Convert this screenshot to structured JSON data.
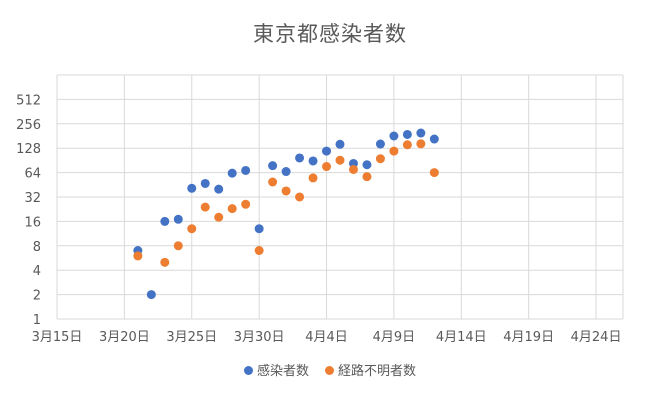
{
  "chart_data": {
    "type": "scatter",
    "title": "東京都感染者数",
    "y_scale": "log2",
    "ylim": [
      1,
      1024
    ],
    "xlim": [
      "2020-03-15",
      "2020-04-26"
    ],
    "x_ticks": [
      "3月15日",
      "3月20日",
      "3月25日",
      "3月30日",
      "4月4日",
      "4月9日",
      "4月14日",
      "4月19日",
      "4月24日"
    ],
    "y_ticks": [
      "1",
      "2",
      "4",
      "8",
      "16",
      "32",
      "64",
      "128",
      "256",
      "512"
    ],
    "grid": true,
    "legend_position": "bottom",
    "series": [
      {
        "name": "感染者数",
        "color": "#4472C4",
        "points": [
          {
            "x": "2020-03-21",
            "y": 7
          },
          {
            "x": "2020-03-22",
            "y": 2
          },
          {
            "x": "2020-03-23",
            "y": 16
          },
          {
            "x": "2020-03-24",
            "y": 17
          },
          {
            "x": "2020-03-25",
            "y": 41
          },
          {
            "x": "2020-03-26",
            "y": 47
          },
          {
            "x": "2020-03-27",
            "y": 40
          },
          {
            "x": "2020-03-28",
            "y": 63
          },
          {
            "x": "2020-03-29",
            "y": 68
          },
          {
            "x": "2020-03-30",
            "y": 13
          },
          {
            "x": "2020-03-31",
            "y": 78
          },
          {
            "x": "2020-04-01",
            "y": 66
          },
          {
            "x": "2020-04-02",
            "y": 97
          },
          {
            "x": "2020-04-03",
            "y": 89
          },
          {
            "x": "2020-04-04",
            "y": 118
          },
          {
            "x": "2020-04-05",
            "y": 143
          },
          {
            "x": "2020-04-06",
            "y": 83
          },
          {
            "x": "2020-04-07",
            "y": 80
          },
          {
            "x": "2020-04-08",
            "y": 144
          },
          {
            "x": "2020-04-09",
            "y": 181
          },
          {
            "x": "2020-04-10",
            "y": 189
          },
          {
            "x": "2020-04-11",
            "y": 197
          },
          {
            "x": "2020-04-12",
            "y": 166
          }
        ]
      },
      {
        "name": "経路不明者数",
        "color": "#ED7D31",
        "points": [
          {
            "x": "2020-03-21",
            "y": 6
          },
          {
            "x": "2020-03-23",
            "y": 5
          },
          {
            "x": "2020-03-24",
            "y": 8
          },
          {
            "x": "2020-03-25",
            "y": 13
          },
          {
            "x": "2020-03-26",
            "y": 24
          },
          {
            "x": "2020-03-27",
            "y": 18
          },
          {
            "x": "2020-03-28",
            "y": 23
          },
          {
            "x": "2020-03-29",
            "y": 26
          },
          {
            "x": "2020-03-30",
            "y": 7
          },
          {
            "x": "2020-03-31",
            "y": 49
          },
          {
            "x": "2020-04-01",
            "y": 38
          },
          {
            "x": "2020-04-02",
            "y": 32
          },
          {
            "x": "2020-04-03",
            "y": 55
          },
          {
            "x": "2020-04-04",
            "y": 76
          },
          {
            "x": "2020-04-05",
            "y": 91
          },
          {
            "x": "2020-04-06",
            "y": 70
          },
          {
            "x": "2020-04-07",
            "y": 57
          },
          {
            "x": "2020-04-08",
            "y": 95
          },
          {
            "x": "2020-04-09",
            "y": 118
          },
          {
            "x": "2020-04-10",
            "y": 141
          },
          {
            "x": "2020-04-11",
            "y": 145
          },
          {
            "x": "2020-04-12",
            "y": 64
          }
        ]
      }
    ]
  }
}
